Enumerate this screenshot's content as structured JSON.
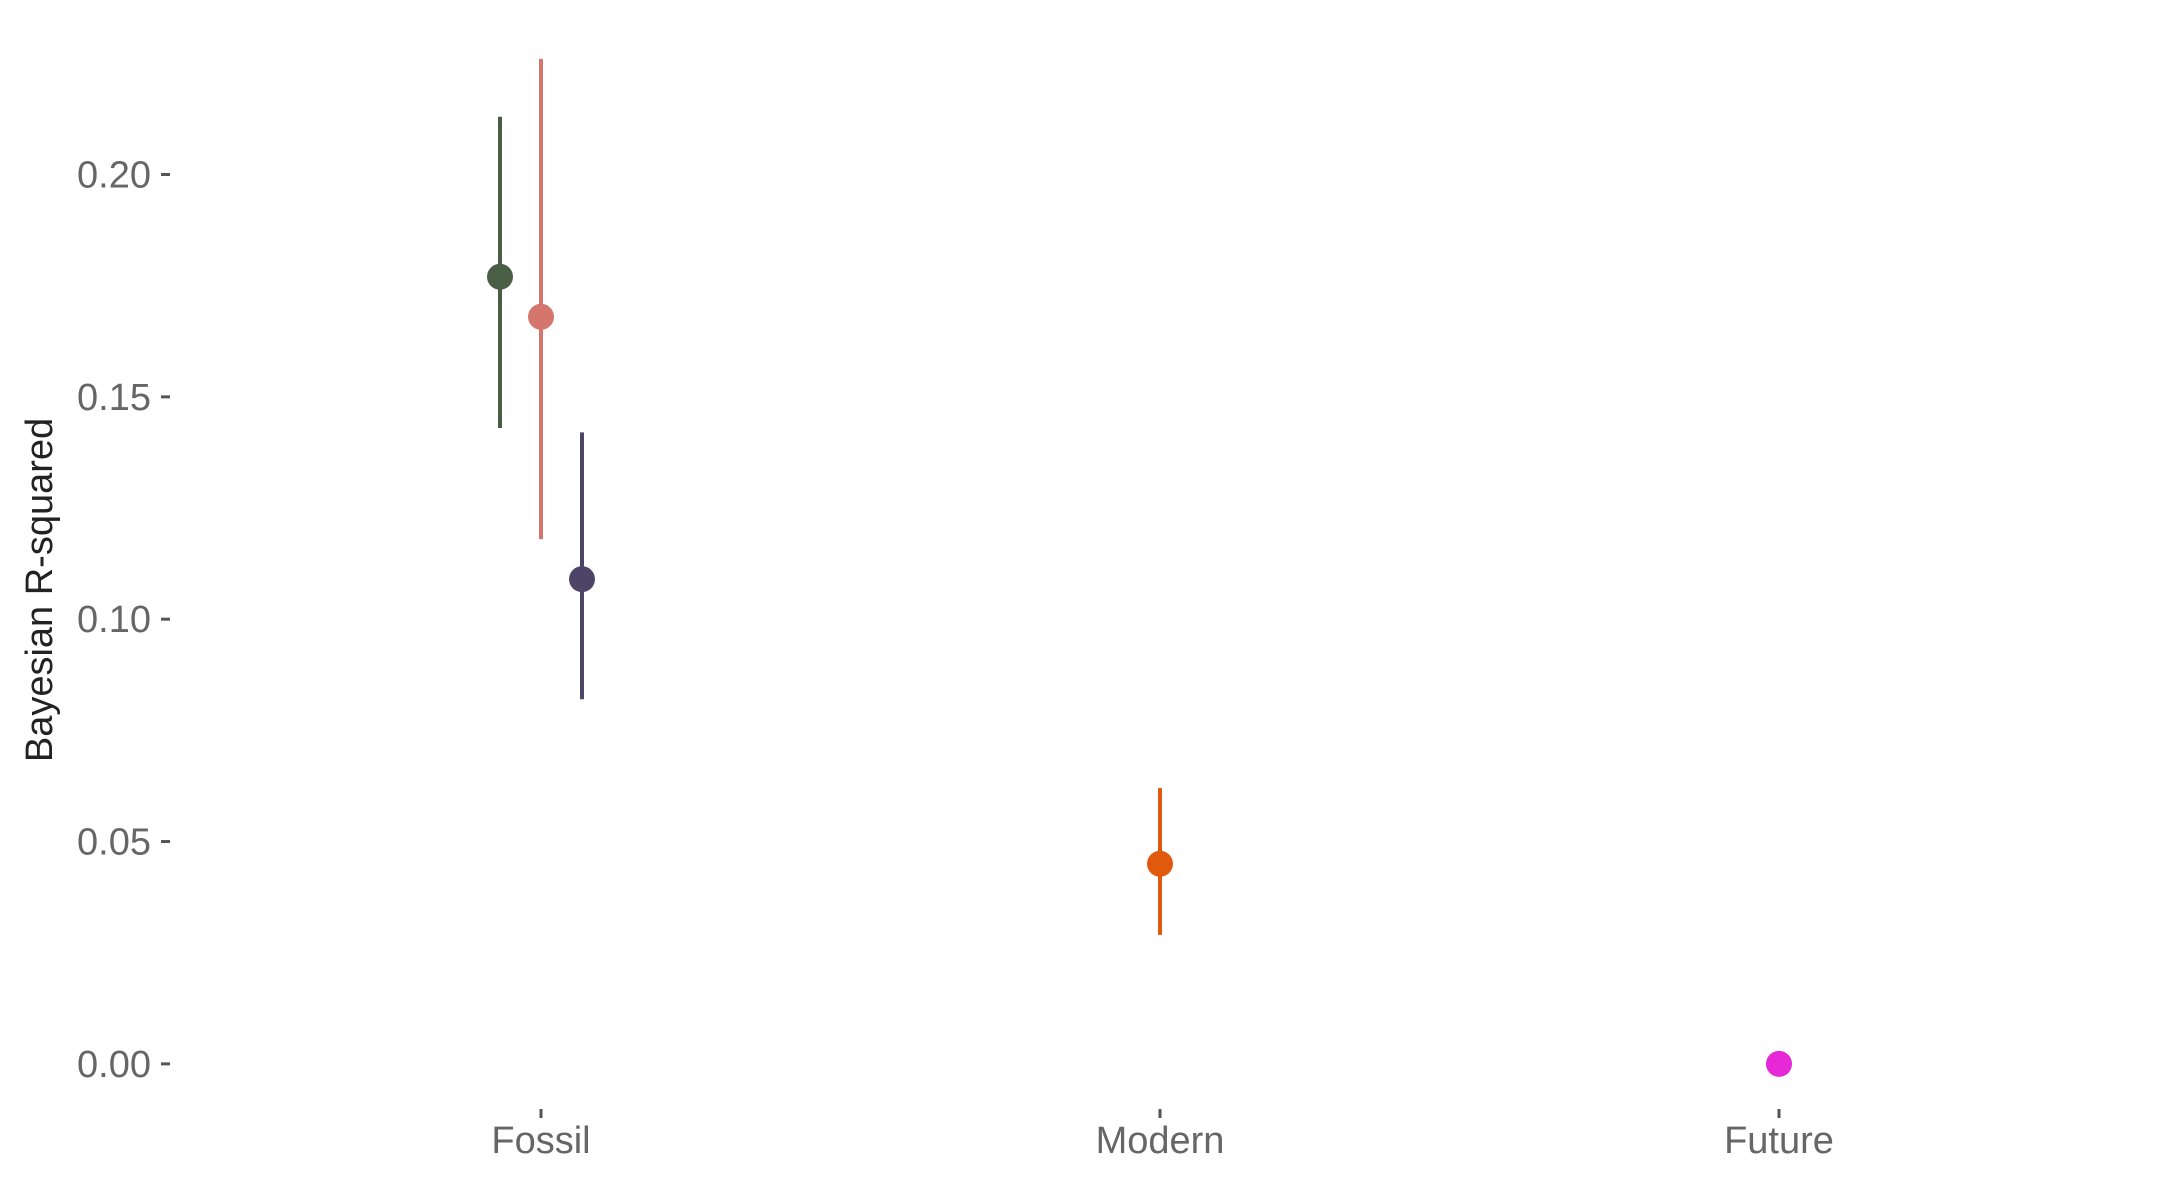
{
  "chart_data": {
    "type": "scatter",
    "title": "",
    "xlabel": "",
    "ylabel": "Bayesian R-squared",
    "categories": [
      "Fossil",
      "Modern",
      "Future"
    ],
    "ylim": [
      -0.007,
      0.228
    ],
    "y_ticks": [
      {
        "value": 0.0,
        "label": "0.00"
      },
      {
        "value": 0.05,
        "label": "0.05"
      },
      {
        "value": 0.1,
        "label": "0.10"
      },
      {
        "value": 0.15,
        "label": "0.15"
      },
      {
        "value": 0.2,
        "label": "0.20"
      }
    ],
    "grid": false,
    "legend": "none",
    "series": [
      {
        "category": "Fossil",
        "dodge": -1,
        "y": 0.177,
        "lower": 0.143,
        "upper": 0.213,
        "color": "#4a5e45"
      },
      {
        "category": "Fossil",
        "dodge": 0,
        "y": 0.168,
        "lower": 0.118,
        "upper": 0.226,
        "color": "#d4766d"
      },
      {
        "category": "Fossil",
        "dodge": 1,
        "y": 0.109,
        "lower": 0.082,
        "upper": 0.142,
        "color": "#4e4468"
      },
      {
        "category": "Modern",
        "dodge": 0,
        "y": 0.045,
        "lower": 0.029,
        "upper": 0.062,
        "color": "#e05a0e"
      },
      {
        "category": "Future",
        "dodge": 0,
        "y": 0.0,
        "lower": 0.0,
        "upper": 0.0,
        "color": "#e628d6"
      }
    ]
  }
}
